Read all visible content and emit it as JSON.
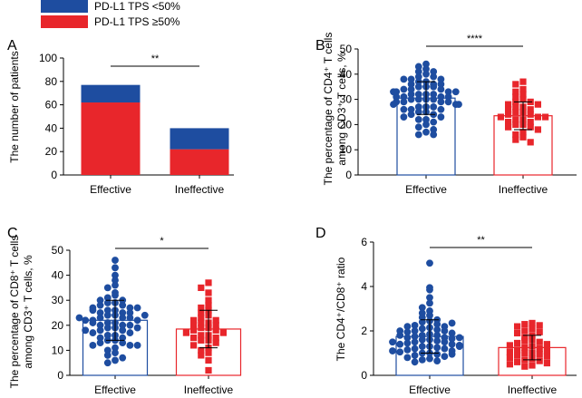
{
  "legend": {
    "items": [
      {
        "label": "PD-L1 TPS <50%",
        "color": "#1e4da0"
      },
      {
        "label": "PD-L1 TPS ≥50%",
        "color": "#e8262b"
      }
    ]
  },
  "colors": {
    "effective": "#1e4da0",
    "ineffective": "#e8262b"
  },
  "chart_data": [
    {
      "panel": "A",
      "type": "bar",
      "stacked": true,
      "ylabel": "The number of patients",
      "categories": [
        "Effective",
        "Ineffective"
      ],
      "series": [
        {
          "name": "PD-L1 TPS ≥50%",
          "values": [
            62,
            22
          ]
        },
        {
          "name": "PD-L1 TPS <50%",
          "values": [
            15,
            18
          ]
        }
      ],
      "ylim": [
        0,
        100
      ],
      "yticks": [
        0,
        20,
        40,
        60,
        80,
        100
      ],
      "significance": "**"
    },
    {
      "panel": "B",
      "type": "scatter",
      "ylabel_lines": [
        "The percentage of CD4⁺ T cells",
        "among CD3⁺ T cells, %"
      ],
      "categories": [
        "Effective",
        "Ineffective"
      ],
      "ylim": [
        0,
        50
      ],
      "yticks": [
        0,
        10,
        20,
        30,
        40,
        50
      ],
      "significance": "****",
      "groups": [
        {
          "name": "Effective",
          "mean": 30.5,
          "sd": 6.5,
          "values": [
            44,
            43,
            42,
            41,
            41,
            40,
            39,
            39,
            38,
            38,
            38,
            37,
            37,
            36,
            36,
            36,
            35,
            35,
            35,
            34,
            34,
            34,
            33,
            33,
            33,
            33,
            32,
            32,
            32,
            32,
            31,
            31,
            31,
            31,
            30,
            30,
            30,
            30,
            29,
            29,
            29,
            29,
            28,
            28,
            28,
            27,
            27,
            27,
            26,
            26,
            26,
            25,
            25,
            24,
            24,
            23,
            23,
            22,
            22,
            21,
            20,
            19,
            18,
            17,
            16,
            16
          ]
        },
        {
          "name": "Ineffective",
          "mean": 23.5,
          "sd": 5.5,
          "values": [
            37,
            36,
            34,
            33,
            32,
            31,
            30,
            29,
            29,
            28,
            28,
            27,
            27,
            26,
            26,
            25,
            25,
            24,
            24,
            23,
            23,
            23,
            22,
            22,
            21,
            21,
            20,
            20,
            19,
            19,
            18,
            17,
            16,
            15,
            14,
            13
          ]
        }
      ]
    },
    {
      "panel": "C",
      "type": "scatter",
      "ylabel_lines": [
        "The percentage of CD8⁺ T cells",
        "among CD3⁺ T cells, %"
      ],
      "categories": [
        "Effective",
        "Ineffective"
      ],
      "ylim": [
        0,
        50
      ],
      "yticks": [
        0,
        10,
        20,
        30,
        40,
        50
      ],
      "significance": "*",
      "groups": [
        {
          "name": "Effective",
          "mean": 22,
          "sd": 8,
          "values": [
            46,
            43,
            40,
            38,
            36,
            35,
            33,
            32,
            31,
            30,
            30,
            29,
            29,
            28,
            28,
            27,
            27,
            26,
            26,
            25,
            25,
            25,
            24,
            24,
            23,
            23,
            23,
            22,
            22,
            21,
            21,
            20,
            20,
            20,
            19,
            19,
            18,
            18,
            17,
            17,
            16,
            16,
            15,
            15,
            14,
            14,
            13,
            13,
            12,
            12,
            11,
            10,
            9,
            8,
            7,
            6,
            5,
            22,
            21,
            24,
            26,
            19,
            18,
            23,
            27,
            12
          ]
        },
        {
          "name": "Ineffective",
          "mean": 18.5,
          "sd": 7.5,
          "values": [
            37,
            35,
            33,
            30,
            28,
            27,
            26,
            25,
            24,
            23,
            22,
            22,
            21,
            21,
            20,
            20,
            19,
            19,
            18,
            18,
            17,
            17,
            16,
            16,
            15,
            15,
            14,
            14,
            13,
            12,
            11,
            10,
            9,
            8,
            6,
            2
          ]
        }
      ]
    },
    {
      "panel": "D",
      "type": "scatter",
      "ylabel": "The CD4⁺/CD8⁺ ratio",
      "categories": [
        "Effective",
        "Ineffective"
      ],
      "ylim": [
        0,
        6
      ],
      "yticks": [
        0,
        2,
        4,
        6
      ],
      "significance": "**",
      "groups": [
        {
          "name": "Effective",
          "mean": 1.75,
          "sd": 0.75,
          "values": [
            5.05,
            3.95,
            3.85,
            3.5,
            3.25,
            3.05,
            2.9,
            2.8,
            2.7,
            2.6,
            2.5,
            2.45,
            2.4,
            2.3,
            2.25,
            2.2,
            2.15,
            2.1,
            2.05,
            2.0,
            2.0,
            1.95,
            1.9,
            1.85,
            1.8,
            1.8,
            1.75,
            1.7,
            1.7,
            1.65,
            1.6,
            1.6,
            1.55,
            1.5,
            1.5,
            1.45,
            1.4,
            1.4,
            1.35,
            1.3,
            1.3,
            1.25,
            1.2,
            1.2,
            1.15,
            1.1,
            1.05,
            1.0,
            1.0,
            0.95,
            0.9,
            0.85,
            0.8,
            0.75,
            0.7,
            0.65,
            0.6,
            2.0,
            1.8,
            1.5,
            1.3,
            2.2,
            1.1,
            0.95,
            1.7,
            2.35
          ]
        },
        {
          "name": "Ineffective",
          "mean": 1.25,
          "sd": 0.55,
          "values": [
            2.35,
            2.3,
            2.25,
            2.2,
            2.1,
            2.0,
            1.95,
            1.9,
            1.8,
            1.7,
            1.6,
            1.55,
            1.5,
            1.45,
            1.4,
            1.35,
            1.3,
            1.25,
            1.2,
            1.15,
            1.1,
            1.05,
            1.0,
            1.0,
            0.95,
            0.9,
            0.85,
            0.8,
            0.75,
            0.7,
            0.65,
            0.6,
            0.55,
            0.5,
            0.45,
            0.4
          ]
        }
      ]
    }
  ]
}
